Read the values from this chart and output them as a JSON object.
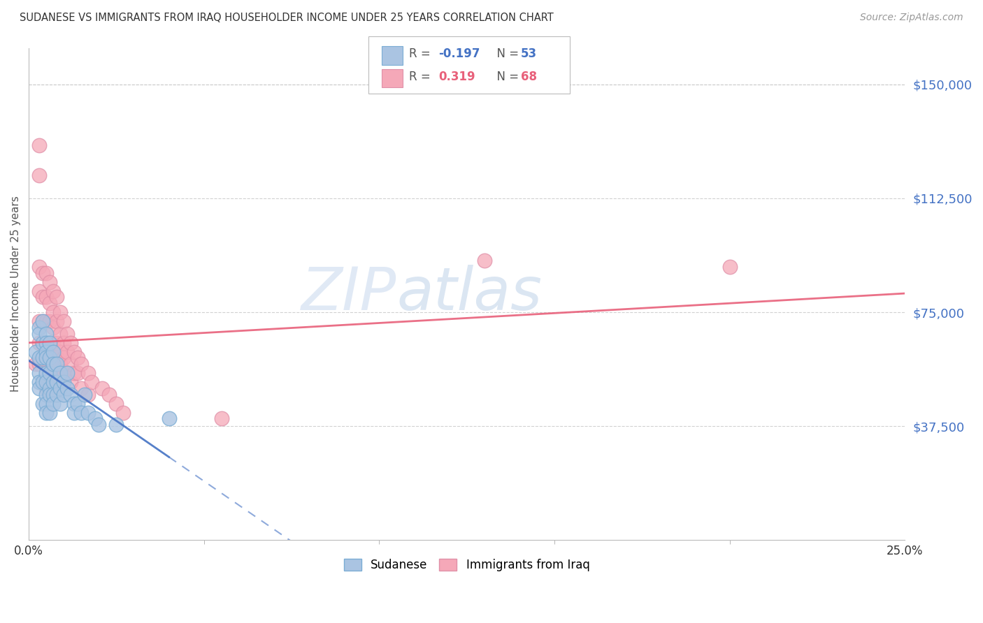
{
  "title": "SUDANESE VS IMMIGRANTS FROM IRAQ HOUSEHOLDER INCOME UNDER 25 YEARS CORRELATION CHART",
  "source": "Source: ZipAtlas.com",
  "ylabel": "Householder Income Under 25 years",
  "xlim": [
    0.0,
    0.25
  ],
  "ylim": [
    0,
    162000
  ],
  "yticks": [
    37500,
    75000,
    112500,
    150000
  ],
  "ytick_labels": [
    "$37,500",
    "$75,000",
    "$112,500",
    "$150,000"
  ],
  "watermark_zip": "ZIP",
  "watermark_atlas": "atlas",
  "legend1_r": "-0.197",
  "legend1_n": "53",
  "legend2_r": "0.319",
  "legend2_n": "68",
  "blue_color": "#aac4e2",
  "pink_color": "#f5a8b8",
  "blue_line_color": "#4472c4",
  "pink_line_color": "#e8607a",
  "background_color": "#ffffff",
  "grid_color": "#cccccc",
  "blue_x": [
    0.002,
    0.003,
    0.003,
    0.003,
    0.003,
    0.003,
    0.003,
    0.004,
    0.004,
    0.004,
    0.004,
    0.004,
    0.005,
    0.005,
    0.005,
    0.005,
    0.005,
    0.005,
    0.005,
    0.005,
    0.005,
    0.006,
    0.006,
    0.006,
    0.006,
    0.006,
    0.006,
    0.007,
    0.007,
    0.007,
    0.007,
    0.007,
    0.008,
    0.008,
    0.008,
    0.009,
    0.009,
    0.009,
    0.01,
    0.01,
    0.011,
    0.011,
    0.012,
    0.013,
    0.013,
    0.014,
    0.015,
    0.016,
    0.017,
    0.019,
    0.02,
    0.025,
    0.04
  ],
  "blue_y": [
    62000,
    70000,
    68000,
    60000,
    55000,
    52000,
    50000,
    72000,
    65000,
    60000,
    52000,
    45000,
    68000,
    65000,
    62000,
    60000,
    55000,
    52000,
    48000,
    45000,
    42000,
    65000,
    60000,
    55000,
    50000,
    48000,
    42000,
    62000,
    58000,
    52000,
    48000,
    45000,
    58000,
    52000,
    48000,
    55000,
    50000,
    45000,
    52000,
    48000,
    55000,
    50000,
    48000,
    45000,
    42000,
    45000,
    42000,
    48000,
    42000,
    40000,
    38000,
    38000,
    40000
  ],
  "pink_x": [
    0.002,
    0.003,
    0.003,
    0.003,
    0.003,
    0.003,
    0.003,
    0.003,
    0.004,
    0.004,
    0.004,
    0.004,
    0.005,
    0.005,
    0.005,
    0.005,
    0.005,
    0.005,
    0.005,
    0.006,
    0.006,
    0.006,
    0.006,
    0.006,
    0.006,
    0.007,
    0.007,
    0.007,
    0.007,
    0.007,
    0.007,
    0.007,
    0.008,
    0.008,
    0.008,
    0.008,
    0.008,
    0.008,
    0.009,
    0.009,
    0.009,
    0.009,
    0.01,
    0.01,
    0.01,
    0.01,
    0.011,
    0.011,
    0.011,
    0.012,
    0.012,
    0.012,
    0.013,
    0.013,
    0.014,
    0.014,
    0.015,
    0.015,
    0.017,
    0.017,
    0.018,
    0.021,
    0.023,
    0.025,
    0.027,
    0.055,
    0.13,
    0.2
  ],
  "pink_y": [
    58000,
    130000,
    120000,
    90000,
    82000,
    72000,
    65000,
    58000,
    88000,
    80000,
    72000,
    65000,
    88000,
    80000,
    72000,
    65000,
    60000,
    55000,
    50000,
    85000,
    78000,
    72000,
    65000,
    60000,
    55000,
    82000,
    75000,
    70000,
    65000,
    60000,
    55000,
    50000,
    80000,
    72000,
    65000,
    60000,
    55000,
    50000,
    75000,
    68000,
    62000,
    58000,
    72000,
    65000,
    60000,
    55000,
    68000,
    62000,
    55000,
    65000,
    58000,
    52000,
    62000,
    55000,
    60000,
    55000,
    58000,
    50000,
    55000,
    48000,
    52000,
    50000,
    48000,
    45000,
    42000,
    40000,
    92000,
    90000
  ]
}
